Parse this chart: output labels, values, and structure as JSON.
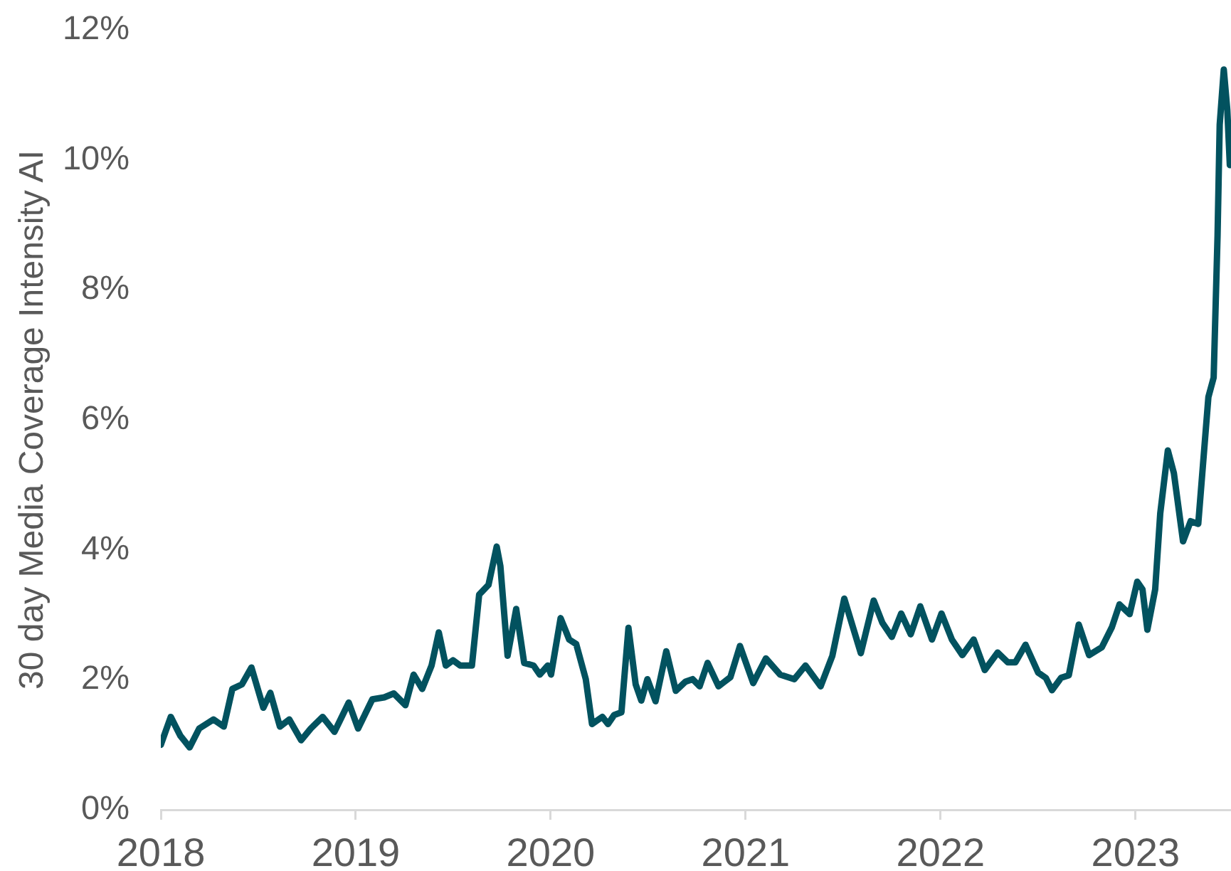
{
  "chart_data": {
    "type": "line",
    "ylabel": "30 day Media Coverage Intensity AI",
    "color": "#02525f",
    "marker": "none",
    "xlim": [
      2018,
      2023.49
    ],
    "xticks": [
      2018,
      2019,
      2020,
      2021,
      2022,
      2023
    ],
    "ylim": [
      0,
      12
    ],
    "yticks": [
      {
        "value": 0,
        "label": "0%"
      },
      {
        "value": 2,
        "label": "2%"
      },
      {
        "value": 4,
        "label": "4%"
      },
      {
        "value": 6,
        "label": "6%"
      },
      {
        "value": 8,
        "label": "8%"
      },
      {
        "value": 10,
        "label": "10%"
      },
      {
        "value": 12,
        "label": "12%"
      }
    ],
    "x": [
      2018.0,
      2018.051,
      2018.1,
      2018.148,
      2018.197,
      2018.27,
      2018.323,
      2018.367,
      2018.416,
      2018.465,
      2018.526,
      2018.562,
      2018.611,
      2018.659,
      2018.72,
      2018.769,
      2018.83,
      2018.891,
      2018.964,
      2019.012,
      2019.085,
      2019.146,
      2019.195,
      2019.255,
      2019.297,
      2019.341,
      2019.389,
      2019.426,
      2019.462,
      2019.499,
      2019.535,
      2019.596,
      2019.633,
      2019.681,
      2019.723,
      2019.742,
      2019.779,
      2019.823,
      2019.864,
      2019.912,
      2019.944,
      2019.985,
      2020.002,
      2020.051,
      2020.095,
      2020.131,
      2020.18,
      2020.212,
      2020.265,
      2020.294,
      2020.326,
      2020.363,
      2020.399,
      2020.436,
      2020.465,
      2020.496,
      2020.538,
      2020.593,
      2020.642,
      2020.691,
      2020.728,
      2020.764,
      2020.805,
      2020.861,
      2020.922,
      2020.971,
      2021.039,
      2021.104,
      2021.177,
      2021.25,
      2021.307,
      2021.385,
      2021.445,
      2021.506,
      2021.591,
      2021.657,
      2021.701,
      2021.75,
      2021.798,
      2021.847,
      2021.896,
      2021.956,
      2022.005,
      2022.058,
      2022.112,
      2022.17,
      2022.227,
      2022.293,
      2022.345,
      2022.384,
      2022.436,
      2022.501,
      2022.54,
      2022.572,
      2022.618,
      2022.658,
      2022.709,
      2022.762,
      2022.827,
      2022.879,
      2022.918,
      2022.97,
      2023.009,
      2023.036,
      2023.061,
      2023.101,
      2023.127,
      2023.166,
      2023.197,
      2023.244,
      2023.283,
      2023.322,
      2023.374,
      2023.401,
      2023.421,
      2023.432,
      2023.453,
      2023.471,
      2023.484
    ],
    "values": [
      1.0,
      1.43,
      1.14,
      0.96,
      1.25,
      1.39,
      1.28,
      1.86,
      1.93,
      2.19,
      1.57,
      1.8,
      1.28,
      1.39,
      1.07,
      1.25,
      1.43,
      1.2,
      1.65,
      1.25,
      1.7,
      1.73,
      1.79,
      1.61,
      2.08,
      1.86,
      2.22,
      2.73,
      2.22,
      2.3,
      2.22,
      2.22,
      3.31,
      3.46,
      4.05,
      3.75,
      2.37,
      3.09,
      2.26,
      2.22,
      2.08,
      2.22,
      2.08,
      2.95,
      2.62,
      2.55,
      2.01,
      1.32,
      1.43,
      1.32,
      1.46,
      1.5,
      2.8,
      1.93,
      1.68,
      2.01,
      1.67,
      2.44,
      1.83,
      1.97,
      2.01,
      1.9,
      2.26,
      1.9,
      2.04,
      2.52,
      1.95,
      2.33,
      2.08,
      2.01,
      2.22,
      1.9,
      2.37,
      3.25,
      2.41,
      3.22,
      2.88,
      2.66,
      3.02,
      2.7,
      3.13,
      2.62,
      3.02,
      2.62,
      2.38,
      2.62,
      2.15,
      2.42,
      2.27,
      2.27,
      2.54,
      2.11,
      2.03,
      1.84,
      2.03,
      2.07,
      2.85,
      2.38,
      2.5,
      2.81,
      3.16,
      3.01,
      3.51,
      3.39,
      2.77,
      3.39,
      4.56,
      5.53,
      5.18,
      4.13,
      4.44,
      4.4,
      6.35,
      6.65,
      8.83,
      10.54,
      11.39,
      10.77,
      9.92
    ]
  }
}
